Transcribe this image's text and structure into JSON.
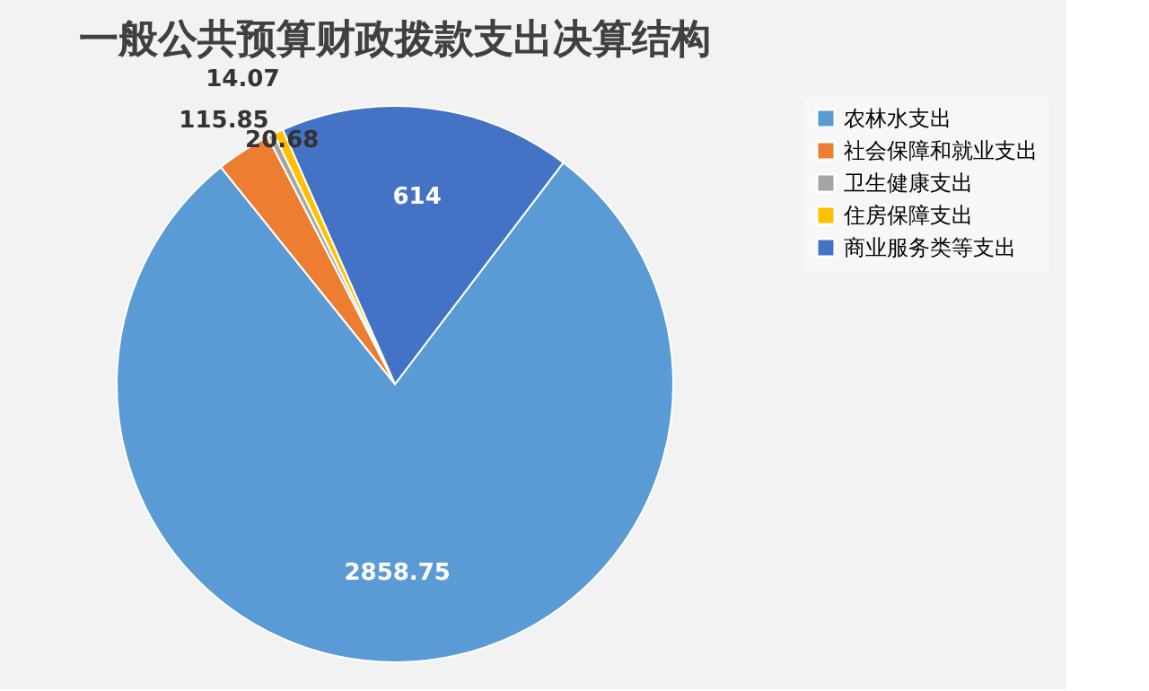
{
  "chart_data": {
    "type": "pie",
    "title": "一般公共预算财政拨款支出决算结构",
    "categories": [
      "农林水支出",
      "社会保障和就业支出",
      "卫生健康支出",
      "住房保障支出",
      "商业服务类等支出"
    ],
    "values": [
      2858.75,
      115.85,
      14.07,
      20.68,
      614
    ],
    "colors": [
      "#5b9bd5",
      "#ed7d31",
      "#a5a5a5",
      "#ffc000",
      "#4472c4"
    ],
    "data_labels": true,
    "legend": "right"
  }
}
